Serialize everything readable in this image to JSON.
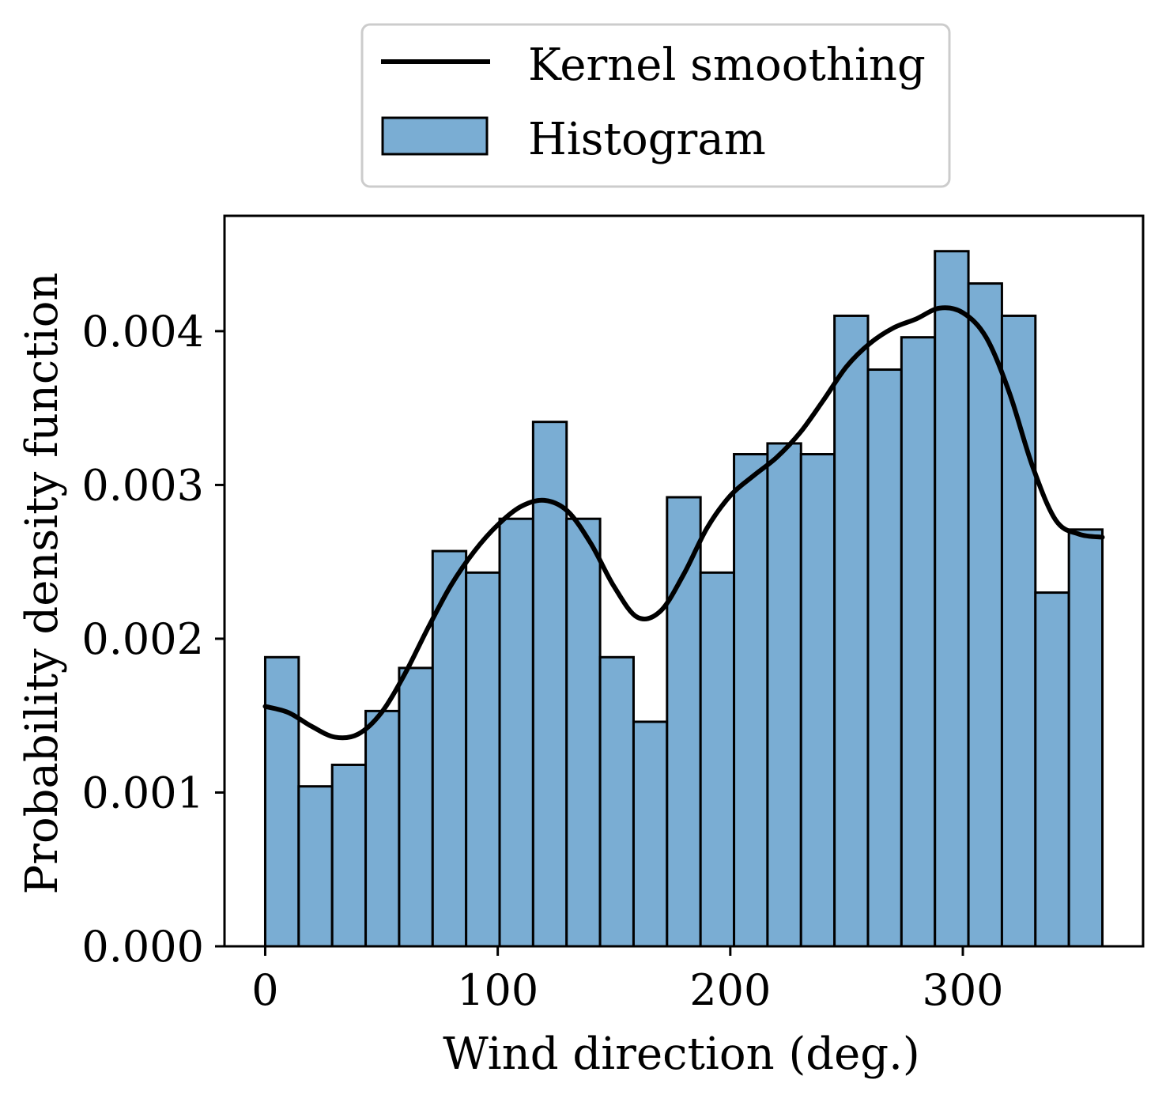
{
  "chart_data": {
    "type": "bar",
    "title": "",
    "xlabel": "Wind direction (deg.)",
    "ylabel": "Probability density function",
    "xlim": [
      -17.5,
      377.5
    ],
    "ylim": [
      0,
      0.00475
    ],
    "xticks": [
      0,
      100,
      200,
      300
    ],
    "xtick_labels": [
      "0",
      "100",
      "200",
      "300"
    ],
    "yticks": [
      0,
      0.001,
      0.002,
      0.003,
      0.004
    ],
    "ytick_labels": [
      "0.000",
      "0.001",
      "0.002",
      "0.003",
      "0.004"
    ],
    "grid": false,
    "legend_position": "top-center outside",
    "colors": {
      "bar_fill": "#7aadd3",
      "bar_edge": "#000000",
      "kde_line": "#000000"
    },
    "series": [
      {
        "name": "Histogram",
        "kind": "histogram",
        "bin_edges": [
          0,
          14.4,
          28.8,
          43.2,
          57.6,
          72,
          86.4,
          100.8,
          115.2,
          129.6,
          144,
          158.4,
          172.8,
          187.2,
          201.6,
          216,
          230.4,
          244.8,
          259.2,
          273.6,
          288,
          302.4,
          316.8,
          331.2,
          345.6,
          360
        ],
        "values": [
          0.00188,
          0.00104,
          0.00118,
          0.00153,
          0.00181,
          0.00257,
          0.00243,
          0.00278,
          0.00341,
          0.00278,
          0.00188,
          0.00146,
          0.00292,
          0.00243,
          0.0032,
          0.00327,
          0.0032,
          0.0041,
          0.00375,
          0.00396,
          0.00452,
          0.00431,
          0.0041,
          0.0023,
          0.00271
        ]
      },
      {
        "name": "Kernel smoothing",
        "kind": "line",
        "x": [
          0,
          10,
          20,
          30,
          40,
          50,
          60,
          70,
          80,
          90,
          100,
          110,
          120,
          130,
          140,
          150,
          160,
          170,
          180,
          190,
          200,
          210,
          220,
          230,
          240,
          250,
          260,
          270,
          280,
          290,
          300,
          310,
          320,
          330,
          340,
          350,
          360
        ],
        "y": [
          0.00156,
          0.00152,
          0.00143,
          0.00136,
          0.00138,
          0.00152,
          0.00177,
          0.00207,
          0.00235,
          0.00257,
          0.00274,
          0.00286,
          0.0029,
          0.00283,
          0.00262,
          0.00234,
          0.00214,
          0.00218,
          0.00242,
          0.00272,
          0.00293,
          0.00306,
          0.00318,
          0.00334,
          0.00355,
          0.00377,
          0.00392,
          0.00402,
          0.00408,
          0.00415,
          0.00412,
          0.00396,
          0.0036,
          0.00312,
          0.00277,
          0.00268,
          0.00266
        ]
      }
    ]
  }
}
